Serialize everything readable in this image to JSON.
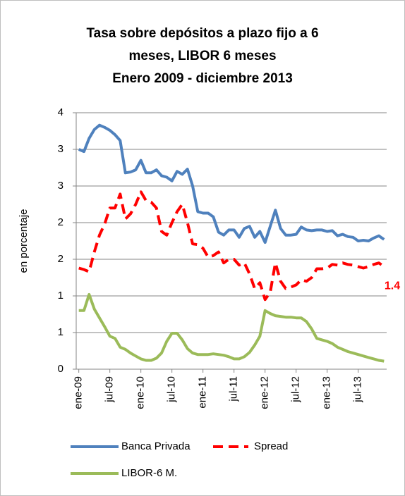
{
  "chart_data": {
    "type": "line",
    "title_lines": [
      "Tasa sobre depósitos a plazo fijo a 6",
      "meses, LIBOR 6 meses",
      "Enero 2009 - diciembre 2013"
    ],
    "y_label": "en porcentaje",
    "categories": [
      "ene-09",
      null,
      null,
      null,
      null,
      null,
      "jul-09",
      null,
      null,
      null,
      null,
      null,
      "ene-10",
      null,
      null,
      null,
      null,
      null,
      "jul-10",
      null,
      null,
      null,
      null,
      null,
      "ene-11",
      null,
      null,
      null,
      null,
      null,
      "jul-11",
      null,
      null,
      null,
      null,
      null,
      "ene-12",
      null,
      null,
      null,
      null,
      null,
      "jul-12",
      null,
      null,
      null,
      null,
      null,
      "ene-13",
      null,
      null,
      null,
      null,
      null,
      "jul-13",
      null,
      null,
      null,
      null,
      null
    ],
    "series": [
      {
        "name": "Banca Privada",
        "color": "#4f81bd",
        "dash": false,
        "values": [
          3.0,
          2.97,
          3.15,
          3.27,
          3.33,
          3.3,
          3.26,
          3.2,
          3.12,
          2.68,
          2.69,
          2.72,
          2.85,
          2.68,
          2.68,
          2.72,
          2.64,
          2.62,
          2.57,
          2.7,
          2.66,
          2.73,
          2.5,
          2.15,
          2.13,
          2.13,
          2.08,
          1.87,
          1.83,
          1.9,
          1.9,
          1.8,
          1.92,
          1.95,
          1.8,
          1.88,
          1.73,
          1.95,
          2.17,
          1.92,
          1.83,
          1.83,
          1.84,
          1.94,
          1.9,
          1.89,
          1.9,
          1.9,
          1.88,
          1.89,
          1.82,
          1.84,
          1.81,
          1.8,
          1.75,
          1.76,
          1.75,
          1.79,
          1.82,
          1.77
        ]
      },
      {
        "name": "Spread",
        "color": "#ff0000",
        "dash": true,
        "values": [
          1.38,
          1.36,
          1.33,
          1.6,
          1.83,
          1.98,
          2.2,
          2.2,
          2.39,
          2.05,
          2.12,
          2.25,
          2.42,
          2.3,
          2.28,
          2.2,
          1.88,
          1.83,
          2.0,
          2.15,
          2.25,
          2.0,
          1.71,
          1.7,
          1.65,
          1.53,
          1.55,
          1.6,
          1.45,
          1.5,
          1.5,
          1.42,
          1.45,
          1.3,
          1.1,
          1.18,
          0.95,
          1.05,
          1.45,
          1.2,
          1.1,
          1.12,
          1.15,
          1.22,
          1.2,
          1.25,
          1.37,
          1.37,
          1.38,
          1.43,
          1.42,
          1.45,
          1.43,
          1.42,
          1.4,
          1.38,
          1.4,
          1.43,
          1.45,
          1.4
        ]
      },
      {
        "name": "LIBOR-6 M.",
        "color": "#9bbb59",
        "dash": false,
        "values": [
          0.8,
          0.8,
          1.02,
          0.82,
          0.7,
          0.58,
          0.45,
          0.42,
          0.3,
          0.27,
          0.22,
          0.18,
          0.14,
          0.12,
          0.12,
          0.15,
          0.22,
          0.38,
          0.49,
          0.49,
          0.4,
          0.28,
          0.22,
          0.2,
          0.2,
          0.2,
          0.21,
          0.2,
          0.19,
          0.17,
          0.14,
          0.14,
          0.17,
          0.23,
          0.33,
          0.45,
          0.8,
          0.76,
          0.73,
          0.72,
          0.71,
          0.71,
          0.7,
          0.7,
          0.65,
          0.55,
          0.42,
          0.4,
          0.38,
          0.35,
          0.3,
          0.27,
          0.24,
          0.22,
          0.2,
          0.18,
          0.16,
          0.14,
          0.12,
          0.11
        ]
      }
    ],
    "end_label_series": 1,
    "ylim": [
      0,
      3.5
    ],
    "yticks": [
      0,
      {
        "value": 0.5,
        "label": "1"
      },
      1,
      {
        "value": 1.5,
        "label": "2"
      },
      2,
      {
        "value": 2.5,
        "label": "3"
      },
      3,
      {
        "value": 3.5,
        "label": "4"
      }
    ],
    "grid": true,
    "legend": "bottom"
  }
}
